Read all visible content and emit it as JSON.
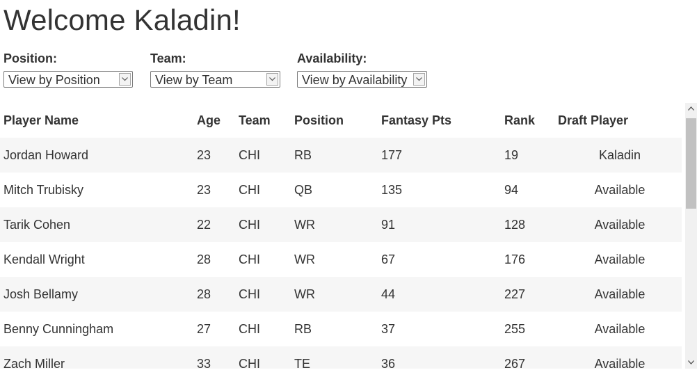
{
  "header": {
    "title": "Welcome Kaladin!"
  },
  "filters": {
    "position": {
      "label": "Position:",
      "selected": "View by Position"
    },
    "team": {
      "label": "Team:",
      "selected": "View by Team"
    },
    "availability": {
      "label": "Availability:",
      "selected": "View by Availability"
    }
  },
  "table": {
    "columns": [
      "Player Name",
      "Age",
      "Team",
      "Position",
      "Fantasy Pts",
      "Rank",
      "Draft Player"
    ],
    "rows": [
      {
        "name": "Jordan Howard",
        "age": "23",
        "team": "CHI",
        "position": "RB",
        "pts": "177",
        "rank": "19",
        "draft": "Kaladin"
      },
      {
        "name": "Mitch Trubisky",
        "age": "23",
        "team": "CHI",
        "position": "QB",
        "pts": "135",
        "rank": "94",
        "draft": "Available"
      },
      {
        "name": "Tarik Cohen",
        "age": "22",
        "team": "CHI",
        "position": "WR",
        "pts": "91",
        "rank": "128",
        "draft": "Available"
      },
      {
        "name": "Kendall Wright",
        "age": "28",
        "team": "CHI",
        "position": "WR",
        "pts": "67",
        "rank": "176",
        "draft": "Available"
      },
      {
        "name": "Josh Bellamy",
        "age": "28",
        "team": "CHI",
        "position": "WR",
        "pts": "44",
        "rank": "227",
        "draft": "Available"
      },
      {
        "name": "Benny Cunningham",
        "age": "27",
        "team": "CHI",
        "position": "RB",
        "pts": "37",
        "rank": "255",
        "draft": "Available"
      },
      {
        "name": "Zach Miller",
        "age": "33",
        "team": "CHI",
        "position": "TE",
        "pts": "36",
        "rank": "267",
        "draft": "Available"
      }
    ]
  },
  "icons": {
    "dropdown": "chevron-down-icon",
    "scroll_up": "scroll-up-arrow-icon",
    "scroll_down": "scroll-down-arrow-icon"
  }
}
